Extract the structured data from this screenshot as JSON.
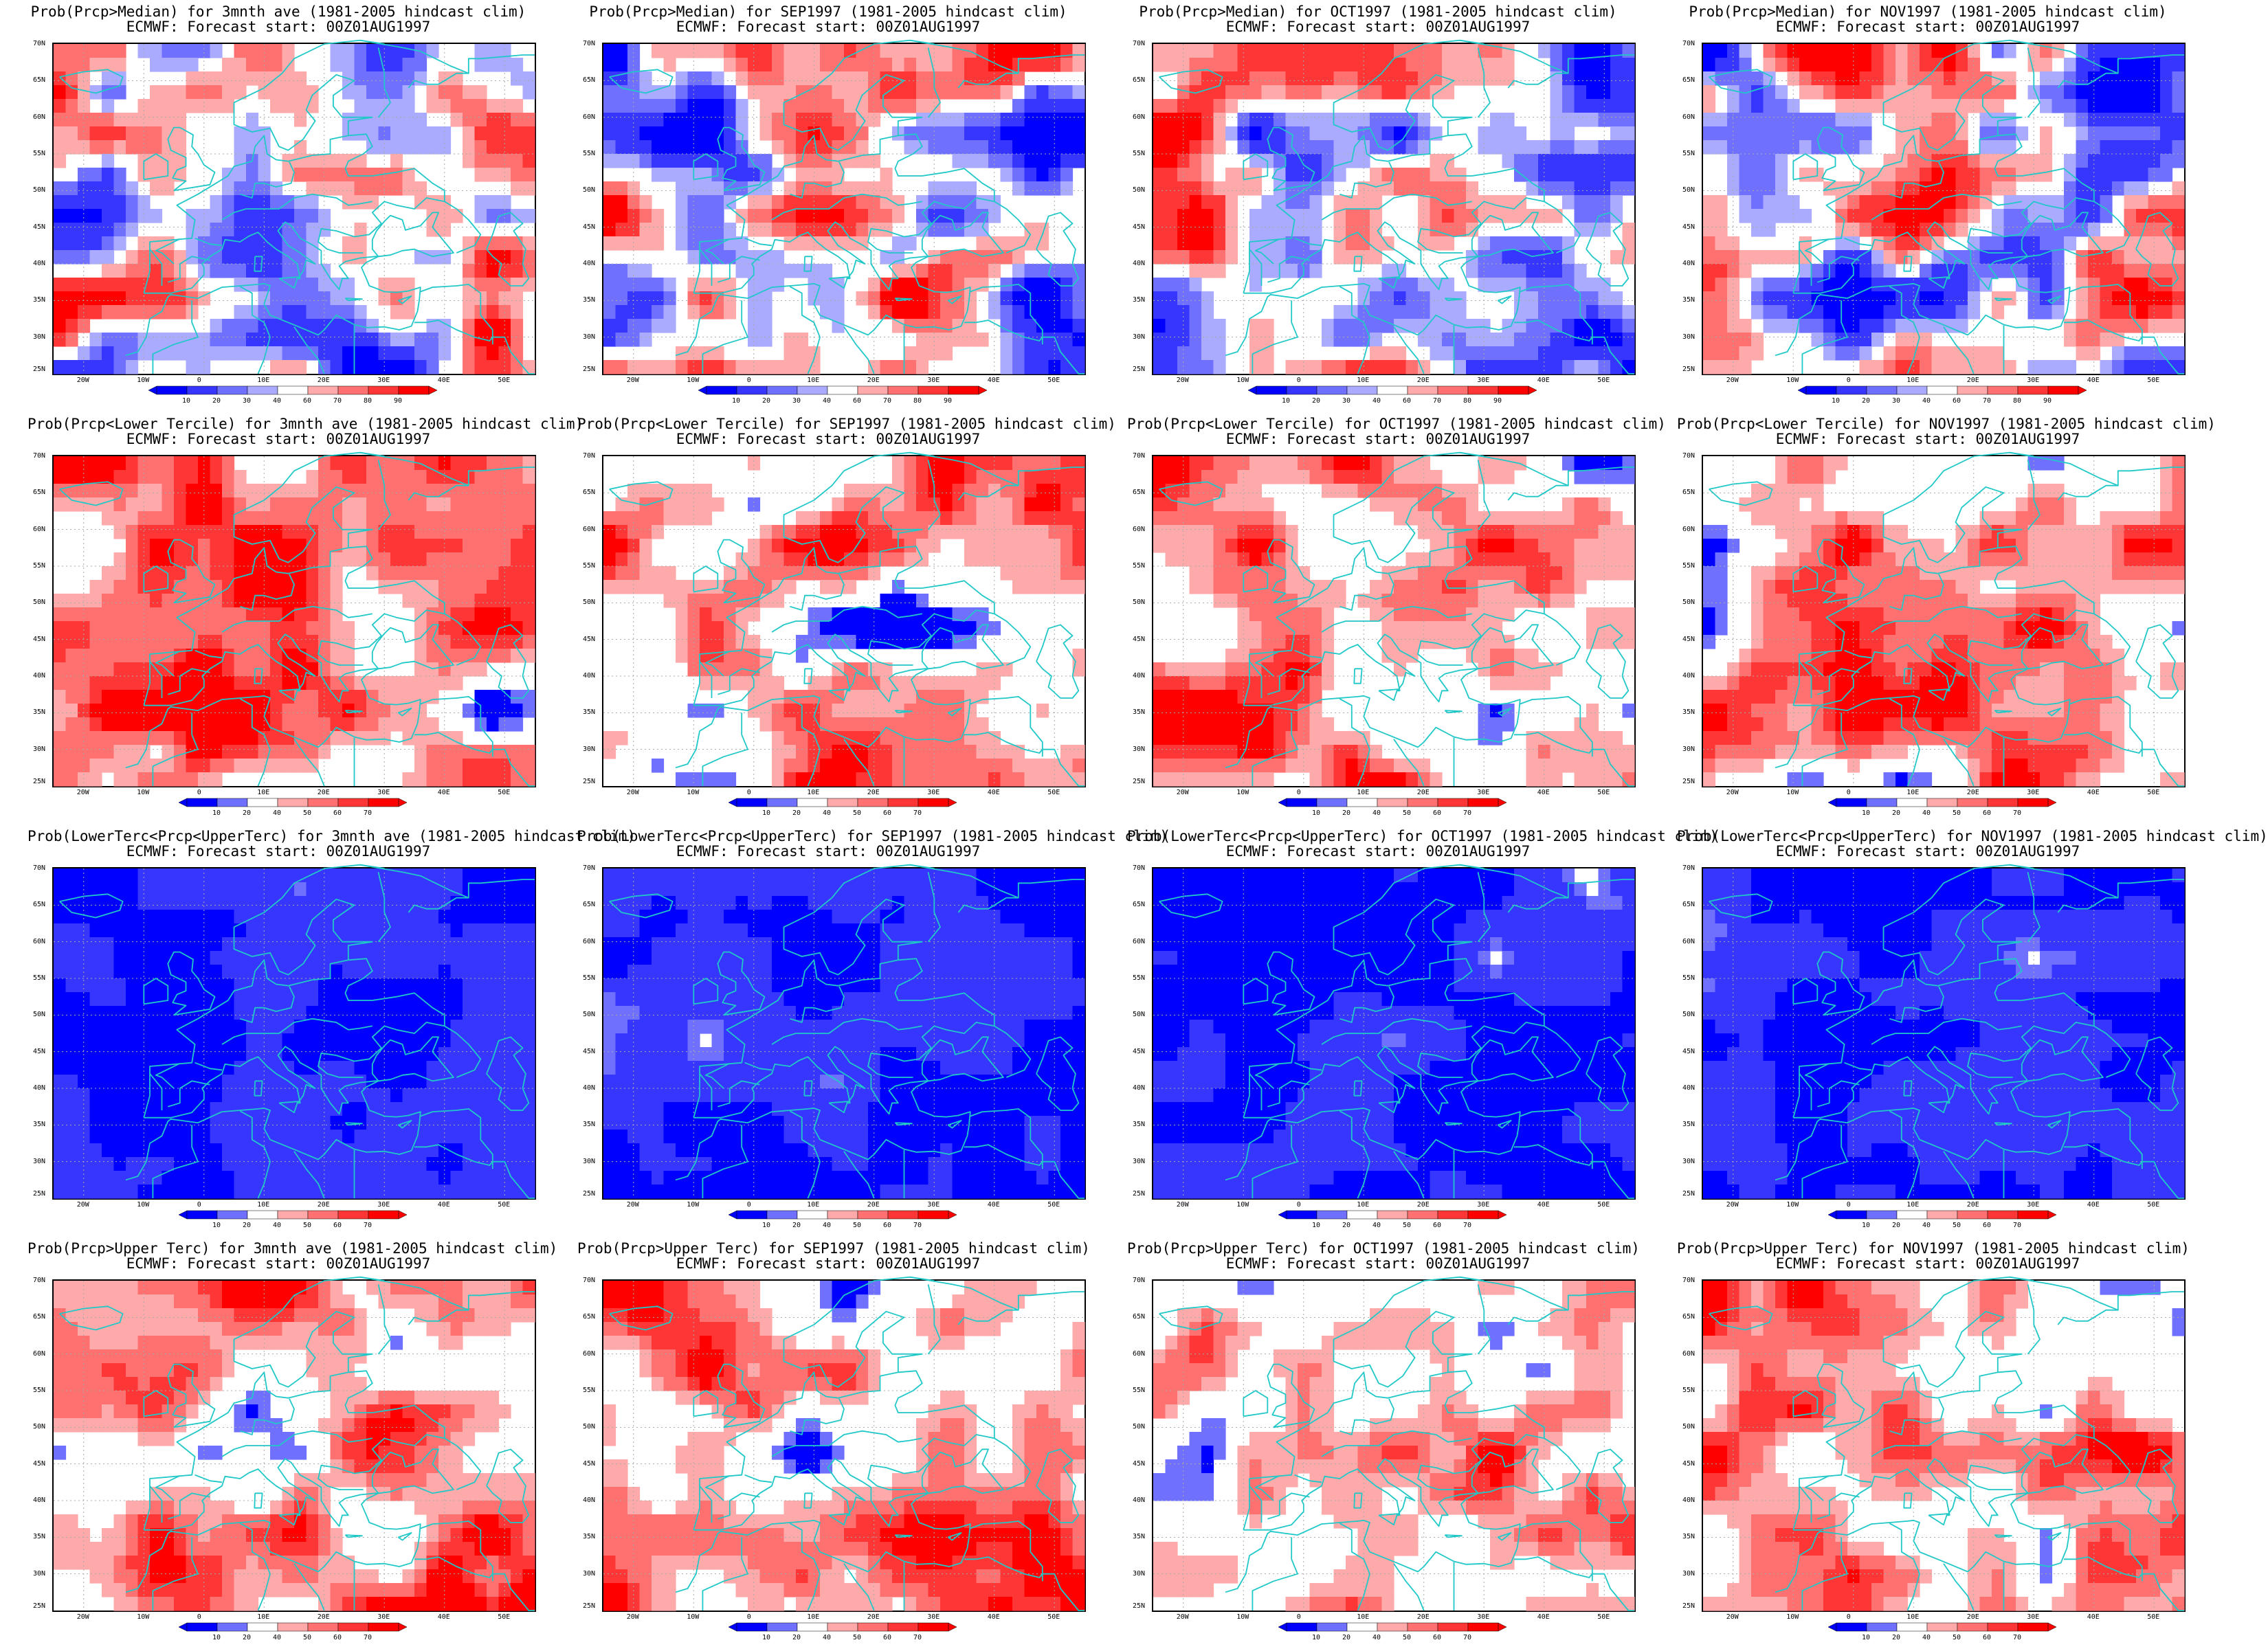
{
  "colors": {
    "blue_ramp": [
      "#0000ff",
      "#3636ff",
      "#7070ff",
      "#aaaaff",
      "#ffffff"
    ],
    "red_ramp": [
      "#ffffff",
      "#ffaaaa",
      "#ff7070",
      "#ff3636",
      "#ff0000"
    ],
    "coast": "#20c8c8",
    "grid": "#aaaaaa"
  },
  "axes": {
    "lon_labels": [
      "20W",
      "10W",
      "0",
      "10E",
      "20E",
      "30E",
      "40E",
      "50E"
    ],
    "lat_labels": [
      "70N",
      "65N",
      "60N",
      "55N",
      "50N",
      "45N",
      "40N",
      "35N",
      "30N",
      "25N"
    ]
  },
  "colorbars": {
    "median": [
      "10",
      "20",
      "30",
      "40",
      "60",
      "70",
      "80",
      "90"
    ],
    "tercile": [
      "10",
      "20",
      "40",
      "50",
      "60",
      "70"
    ]
  },
  "rows": [
    {
      "kind": "median",
      "panels": [
        {
          "title": "Prob(Prcp>Median) for 3mnth ave (1981-2005 hindcast clim)",
          "subtitle": "ECMWF: Forecast start: 00Z01AUG1997"
        },
        {
          "title": "Prob(Prcp>Median) for SEP1997 (1981-2005 hindcast clim)",
          "subtitle": "ECMWF: Forecast start: 00Z01AUG1997"
        },
        {
          "title": "Prob(Prcp>Median) for OCT1997 (1981-2005 hindcast clim)",
          "subtitle": "ECMWF: Forecast start: 00Z01AUG1997"
        },
        {
          "title": "Prob(Prcp>Median) for NOV1997 (1981-2005 hindcast clim)",
          "subtitle": "ECMWF: Forecast start: 00Z01AUG1997"
        }
      ]
    },
    {
      "kind": "tercile",
      "panels": [
        {
          "title": "Prob(Prcp<Lower Tercile) for 3mnth ave (1981-2005 hindcast clim)",
          "subtitle": "ECMWF: Forecast start: 00Z01AUG1997"
        },
        {
          "title": "Prob(Prcp<Lower Tercile) for SEP1997 (1981-2005 hindcast clim)",
          "subtitle": "ECMWF: Forecast start: 00Z01AUG1997"
        },
        {
          "title": "Prob(Prcp<Lower Tercile) for OCT1997 (1981-2005 hindcast clim)",
          "subtitle": "ECMWF: Forecast start: 00Z01AUG1997"
        },
        {
          "title": "Prob(Prcp<Lower Tercile) for NOV1997 (1981-2005 hindcast clim)",
          "subtitle": "ECMWF: Forecast start: 00Z01AUG1997"
        }
      ]
    },
    {
      "kind": "tercile",
      "panels": [
        {
          "title": "Prob(LowerTerc<Prcp<UpperTerc) for 3mnth ave (1981-2005 hindcast clim)",
          "subtitle": "ECMWF: Forecast start: 00Z01AUG1997"
        },
        {
          "title": "Prob(LowerTerc<Prcp<UpperTerc) for SEP1997 (1981-2005 hindcast clim)",
          "subtitle": "ECMWF: Forecast start: 00Z01AUG1997"
        },
        {
          "title": "Prob(LowerTerc<Prcp<UpperTerc) for OCT1997 (1981-2005 hindcast clim)",
          "subtitle": "ECMWF: Forecast start: 00Z01AUG1997"
        },
        {
          "title": "Prob(LowerTerc<Prcp<UpperTerc) for NOV1997 (1981-2005 hindcast clim)",
          "subtitle": "ECMWF: Forecast start: 00Z01AUG1997"
        }
      ]
    },
    {
      "kind": "tercile",
      "panels": [
        {
          "title": "Prob(Prcp>Upper Terc) for 3mnth ave (1981-2005 hindcast clim)",
          "subtitle": "ECMWF: Forecast start: 00Z01AUG1997"
        },
        {
          "title": "Prob(Prcp>Upper Terc) for SEP1997 (1981-2005 hindcast clim)",
          "subtitle": "ECMWF: Forecast start: 00Z01AUG1997"
        },
        {
          "title": "Prob(Prcp>Upper Terc) for OCT1997 (1981-2005 hindcast clim)",
          "subtitle": "ECMWF: Forecast start: 00Z01AUG1997"
        },
        {
          "title": "Prob(Prcp>Upper Terc) for NOV1997 (1981-2005 hindcast clim)",
          "subtitle": "ECMWF: Forecast start: 00Z01AUG1997"
        }
      ]
    }
  ]
}
